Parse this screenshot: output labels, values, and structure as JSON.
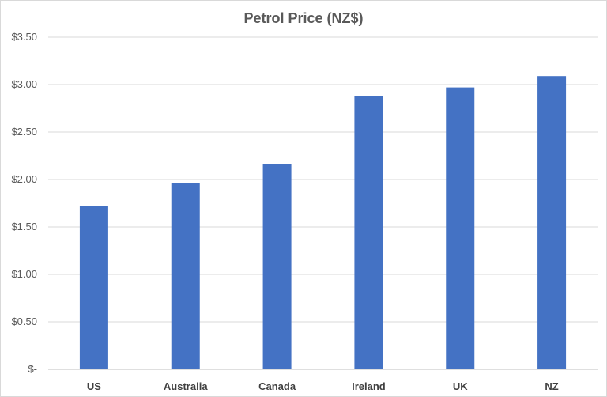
{
  "chart_data": {
    "type": "bar",
    "title": "Petrol Price (NZ$)",
    "xlabel": "",
    "ylabel": "",
    "categories": [
      "US",
      "Australia",
      "Canada",
      "Ireland",
      "UK",
      "NZ"
    ],
    "values": [
      1.72,
      1.96,
      2.16,
      2.88,
      2.97,
      3.09
    ],
    "ylim": [
      0,
      3.5
    ],
    "yticks": [
      0,
      0.5,
      1.0,
      1.5,
      2.0,
      2.5,
      3.0,
      3.5
    ],
    "ytick_labels": [
      "$-",
      "$0.50",
      "$1.00",
      "$1.50",
      "$2.00",
      "$2.50",
      "$3.00",
      "$3.50"
    ],
    "grid": true,
    "legend": "none",
    "bar_color": "#4472C4"
  }
}
